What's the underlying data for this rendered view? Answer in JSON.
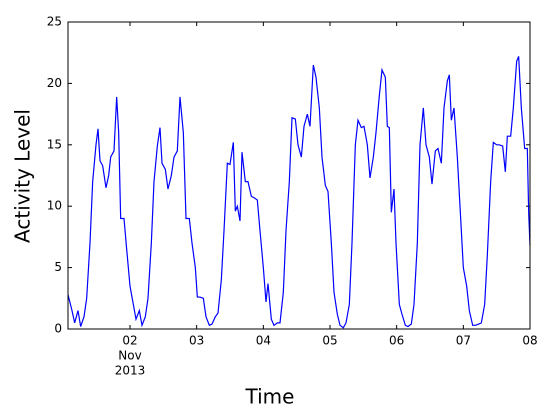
{
  "chart_data": {
    "type": "line",
    "xlabel": "Time",
    "ylabel": "Activity Level",
    "xlim": [
      1.07,
      8.0
    ],
    "ylim": [
      0,
      25
    ],
    "yticks": [
      0,
      5,
      10,
      15,
      20,
      25
    ],
    "xticks": [
      {
        "value": 2,
        "label": "02"
      },
      {
        "value": 3,
        "label": "03"
      },
      {
        "value": 4,
        "label": "04"
      },
      {
        "value": 5,
        "label": "05"
      },
      {
        "value": 6,
        "label": "06"
      },
      {
        "value": 7,
        "label": "07"
      },
      {
        "value": 8,
        "label": "08"
      }
    ],
    "x_offset_labels": [
      "Nov",
      "2013"
    ],
    "grid": false,
    "series": [
      {
        "color": "#0000ff",
        "x": [
          1.07,
          1.13,
          1.17,
          1.22,
          1.26,
          1.31,
          1.35,
          1.4,
          1.44,
          1.49,
          1.52,
          1.55,
          1.59,
          1.64,
          1.68,
          1.71,
          1.76,
          1.8,
          1.83,
          1.86,
          1.91,
          1.95,
          2.0,
          2.05,
          2.09,
          2.14,
          2.18,
          2.23,
          2.27,
          2.32,
          2.36,
          2.41,
          2.45,
          2.48,
          2.53,
          2.57,
          2.62,
          2.66,
          2.71,
          2.75,
          2.8,
          2.84,
          2.89,
          2.93,
          2.98,
          3.01,
          3.05,
          3.1,
          3.14,
          3.19,
          3.23,
          3.28,
          3.32,
          3.37,
          3.41,
          3.46,
          3.5,
          3.55,
          3.58,
          3.61,
          3.65,
          3.68,
          3.73,
          3.77,
          3.82,
          3.86,
          3.91,
          3.95,
          4.0,
          4.04,
          4.07,
          4.12,
          4.16,
          4.21,
          4.25,
          4.3,
          4.34,
          4.39,
          4.43,
          4.48,
          4.52,
          4.57,
          4.61,
          4.66,
          4.7,
          4.75,
          4.79,
          4.84,
          4.88,
          4.93,
          4.97,
          5.02,
          5.06,
          5.11,
          5.15,
          5.2,
          5.24,
          5.29,
          5.33,
          5.38,
          5.42,
          5.47,
          5.51,
          5.56,
          5.6,
          5.65,
          5.69,
          5.74,
          5.78,
          5.83,
          5.86,
          5.89,
          5.92,
          5.96,
          5.99,
          6.04,
          6.08,
          6.13,
          6.17,
          6.22,
          6.26,
          6.31,
          6.35,
          6.4,
          6.44,
          6.49,
          6.53,
          6.58,
          6.62,
          6.67,
          6.71,
          6.76,
          6.79,
          6.82,
          6.86,
          6.91,
          6.95,
          7.0,
          7.05,
          7.09,
          7.14,
          7.18,
          7.23,
          7.27,
          7.32,
          7.36,
          7.41,
          7.45,
          7.5,
          7.54,
          7.59,
          7.63,
          7.66,
          7.71,
          7.75,
          7.8,
          7.83,
          7.87,
          7.92,
          7.96,
          7.98,
          8.0
        ],
        "values": [
          2.8,
          1.5,
          0.5,
          1.5,
          0.2,
          1,
          2.5,
          7,
          12,
          15,
          16.3,
          13.7,
          13.3,
          11.5,
          12.5,
          14,
          14.5,
          18.9,
          16,
          9,
          9,
          6.5,
          3.5,
          2,
          0.8,
          1.5,
          0.3,
          1,
          2.5,
          7,
          12,
          14.9,
          16.4,
          13.5,
          13,
          11.4,
          12.5,
          14,
          14.5,
          18.9,
          16,
          9,
          9,
          7,
          5,
          2.6,
          2.6,
          2.5,
          1,
          0.3,
          0.4,
          1,
          1.3,
          4,
          8,
          13.5,
          13.4,
          15.2,
          9.6,
          10,
          8.8,
          14.4,
          12,
          12,
          10.8,
          10.7,
          10.5,
          8,
          5,
          2.2,
          3.7,
          0.8,
          0.3,
          0.5,
          0.5,
          3,
          8,
          12,
          17.2,
          17.1,
          15,
          14,
          16.5,
          17.5,
          16.5,
          21.5,
          20.5,
          18,
          14,
          11.7,
          11.2,
          7,
          3,
          1.2,
          0.3,
          0.1,
          0.5,
          2,
          7,
          15,
          17,
          16.4,
          16.5,
          15,
          12.3,
          14,
          16,
          19,
          21.1,
          20.5,
          16.5,
          16.4,
          9.5,
          11.4,
          7,
          2,
          1.2,
          0.3,
          0.2,
          0.4,
          2,
          7,
          15,
          18,
          15,
          14,
          11.8,
          14.5,
          14.7,
          13.5,
          18,
          20.2,
          20.7,
          17,
          18,
          14,
          10,
          5,
          3.5,
          1.5,
          0.3,
          0.3,
          0.4,
          0.5,
          2,
          6,
          12,
          15.2,
          15,
          15,
          14.9,
          12.8,
          15.7,
          15.7,
          18,
          21.8,
          22.2,
          18,
          14.7,
          14.7,
          9.5,
          6.8
        ]
      }
    ]
  }
}
